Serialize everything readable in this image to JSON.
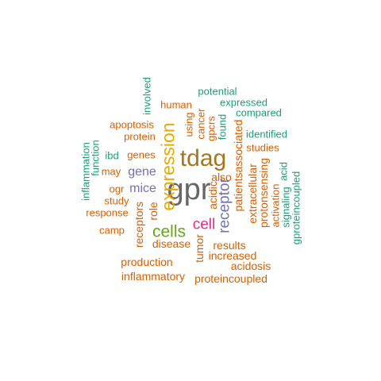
{
  "words": [
    {
      "text": "gpr",
      "color": "#666666"
    },
    {
      "text": "tdag",
      "color": "#a6761d"
    },
    {
      "text": "expression",
      "color": "#e6ab02"
    },
    {
      "text": "cells",
      "color": "#66a61e"
    },
    {
      "text": "cell",
      "color": "#e7298a"
    },
    {
      "text": "receptor",
      "color": "#7570b3"
    },
    {
      "text": "gene",
      "color": "#7570b3"
    },
    {
      "text": "mice",
      "color": "#7570b3"
    },
    {
      "text": "acidic",
      "color": "#d95f02"
    },
    {
      "text": "tumor",
      "color": "#d95f02"
    },
    {
      "text": "also",
      "color": "#d95f02"
    },
    {
      "text": "patients",
      "color": "#d95f02"
    },
    {
      "text": "associated",
      "color": "#d95f02"
    },
    {
      "text": "extracellular",
      "color": "#d95f02"
    },
    {
      "text": "protonsensing",
      "color": "#d95f02"
    },
    {
      "text": "receptors",
      "color": "#d95f02"
    },
    {
      "text": "role",
      "color": "#d95f02"
    },
    {
      "text": "disease",
      "color": "#d95f02"
    },
    {
      "text": "results",
      "color": "#d95f02"
    },
    {
      "text": "increased",
      "color": "#d95f02"
    },
    {
      "text": "acidosis",
      "color": "#d95f02"
    },
    {
      "text": "production",
      "color": "#d95f02"
    },
    {
      "text": "inflammatory",
      "color": "#d95f02"
    },
    {
      "text": "proteincoupled",
      "color": "#d95f02"
    },
    {
      "text": "camp",
      "color": "#d95f02"
    },
    {
      "text": "response",
      "color": "#d95f02"
    },
    {
      "text": "study",
      "color": "#d95f02"
    },
    {
      "text": "ogr",
      "color": "#d95f02"
    },
    {
      "text": "may",
      "color": "#d95f02"
    },
    {
      "text": "genes",
      "color": "#d95f02"
    },
    {
      "text": "protein",
      "color": "#d95f02"
    },
    {
      "text": "apoptosis",
      "color": "#d95f02"
    },
    {
      "text": "human",
      "color": "#d95f02"
    },
    {
      "text": "using",
      "color": "#d95f02"
    },
    {
      "text": "cancer",
      "color": "#d95f02"
    },
    {
      "text": "gpcrs",
      "color": "#d95f02"
    },
    {
      "text": "studies",
      "color": "#d95f02"
    },
    {
      "text": "activation",
      "color": "#d95f02"
    },
    {
      "text": "potential",
      "color": "#1b9e77"
    },
    {
      "text": "expressed",
      "color": "#1b9e77"
    },
    {
      "text": "compared",
      "color": "#1b9e77"
    },
    {
      "text": "identified",
      "color": "#1b9e77"
    },
    {
      "text": "found",
      "color": "#1b9e77"
    },
    {
      "text": "involved",
      "color": "#1b9e77"
    },
    {
      "text": "ibd",
      "color": "#1b9e77"
    },
    {
      "text": "inflammation",
      "color": "#1b9e77"
    },
    {
      "text": "function",
      "color": "#1b9e77"
    },
    {
      "text": "signaling",
      "color": "#1b9e77"
    },
    {
      "text": "acid",
      "color": "#1b9e77"
    },
    {
      "text": "gproteincoupled",
      "color": "#1b9e77"
    }
  ]
}
